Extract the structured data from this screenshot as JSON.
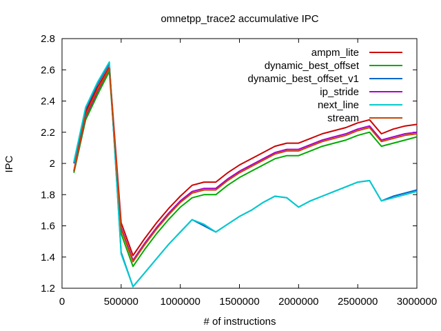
{
  "chart_data": {
    "type": "line",
    "title": "omnetpp_trace2 accumulative IPC",
    "xlabel": "# of instructions",
    "ylabel": "IPC",
    "xlim": [
      0,
      3000000
    ],
    "ylim": [
      1.2,
      2.8
    ],
    "grid": false,
    "legend_position": "top-right",
    "x_ticks": [
      0,
      500000,
      1000000,
      1500000,
      2000000,
      2500000,
      3000000
    ],
    "x_tick_labels": [
      "0",
      "500000",
      "1000000",
      "1500000",
      "2000000",
      "2500000",
      "3000000"
    ],
    "y_ticks": [
      1.2,
      1.4,
      1.6,
      1.8,
      2.0,
      2.2,
      2.4,
      2.6,
      2.8
    ],
    "y_tick_labels": [
      "1.2",
      "1.4",
      "1.6",
      "1.8",
      "2",
      "2.2",
      "2.4",
      "2.6",
      "2.8"
    ],
    "x": [
      100000,
      200000,
      300000,
      400000,
      500000,
      600000,
      700000,
      800000,
      900000,
      1000000,
      1100000,
      1200000,
      1300000,
      1400000,
      1500000,
      1600000,
      1700000,
      1800000,
      1900000,
      2000000,
      2100000,
      2200000,
      2300000,
      2400000,
      2500000,
      2600000,
      2700000,
      2800000,
      2900000,
      3000000
    ],
    "series": [
      {
        "name": "ampm_lite",
        "color": "#cc0000",
        "values": [
          1.95,
          2.33,
          2.49,
          2.62,
          1.62,
          1.41,
          1.52,
          1.62,
          1.71,
          1.79,
          1.86,
          1.88,
          1.88,
          1.94,
          1.99,
          2.03,
          2.07,
          2.11,
          2.13,
          2.13,
          2.16,
          2.19,
          2.21,
          2.23,
          2.26,
          2.28,
          2.19,
          2.22,
          2.24,
          2.25
        ]
      },
      {
        "name": "dynamic_best_offset",
        "color": "#00aa00",
        "values": [
          1.94,
          2.28,
          2.44,
          2.59,
          1.55,
          1.34,
          1.45,
          1.55,
          1.64,
          1.72,
          1.78,
          1.8,
          1.8,
          1.86,
          1.91,
          1.95,
          1.99,
          2.03,
          2.05,
          2.05,
          2.08,
          2.11,
          2.13,
          2.15,
          2.18,
          2.2,
          2.11,
          2.13,
          2.15,
          2.17
        ]
      },
      {
        "name": "dynamic_best_offset_v1",
        "color": "#0066cc",
        "values": [
          2.0,
          2.35,
          2.51,
          2.64,
          1.43,
          1.21,
          1.3,
          1.39,
          1.48,
          1.56,
          1.64,
          1.6,
          1.56,
          1.61,
          1.66,
          1.7,
          1.75,
          1.79,
          1.78,
          1.72,
          1.76,
          1.79,
          1.82,
          1.85,
          1.88,
          1.89,
          1.76,
          1.79,
          1.81,
          1.83
        ]
      },
      {
        "name": "ip_stride",
        "color": "#aa00cc",
        "values": [
          1.95,
          2.3,
          2.46,
          2.61,
          1.59,
          1.38,
          1.49,
          1.59,
          1.68,
          1.76,
          1.82,
          1.84,
          1.84,
          1.9,
          1.95,
          1.99,
          2.03,
          2.07,
          2.09,
          2.09,
          2.12,
          2.15,
          2.17,
          2.19,
          2.22,
          2.24,
          2.15,
          2.17,
          2.19,
          2.2
        ]
      },
      {
        "name": "next_line",
        "color": "#00cccc",
        "values": [
          2.01,
          2.36,
          2.52,
          2.65,
          1.42,
          1.21,
          1.3,
          1.39,
          1.48,
          1.56,
          1.64,
          1.61,
          1.56,
          1.61,
          1.66,
          1.7,
          1.75,
          1.79,
          1.78,
          1.72,
          1.76,
          1.79,
          1.82,
          1.85,
          1.88,
          1.89,
          1.76,
          1.78,
          1.8,
          1.82
        ]
      },
      {
        "name": "stream",
        "color": "#cc4400",
        "values": [
          1.95,
          2.31,
          2.47,
          2.61,
          1.58,
          1.37,
          1.48,
          1.58,
          1.67,
          1.75,
          1.81,
          1.83,
          1.83,
          1.89,
          1.94,
          1.98,
          2.02,
          2.06,
          2.08,
          2.08,
          2.11,
          2.14,
          2.16,
          2.18,
          2.21,
          2.23,
          2.14,
          2.16,
          2.18,
          2.19
        ]
      }
    ]
  }
}
